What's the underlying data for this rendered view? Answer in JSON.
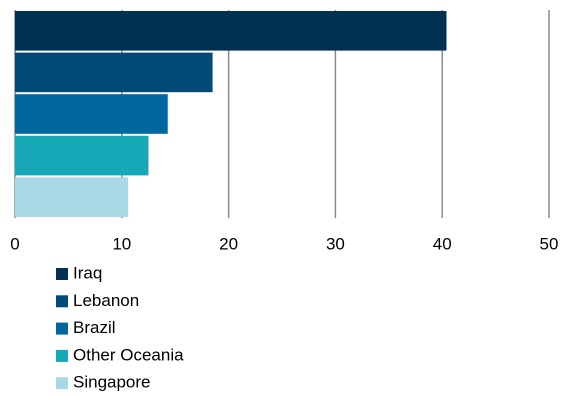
{
  "chart_data": {
    "type": "bar",
    "orientation": "horizontal",
    "categories": [
      "Iraq",
      "Lebanon",
      "Brazil",
      "Other Oceania",
      "Singapore"
    ],
    "series": [
      {
        "name": "Iraq",
        "color": "#003150",
        "values": [
          40.4,
          null,
          null,
          null,
          null
        ]
      },
      {
        "name": "Lebanon",
        "color": "#004a75",
        "values": [
          null,
          18.5,
          null,
          null,
          null
        ]
      },
      {
        "name": "Brazil",
        "color": "#00689e",
        "values": [
          null,
          null,
          14.3,
          null,
          null
        ]
      },
      {
        "name": "Other Oceania",
        "color": "#17a8b8",
        "values": [
          null,
          null,
          null,
          12.5,
          null
        ]
      },
      {
        "name": "Singapore",
        "color": "#a8d8e4",
        "values": [
          null,
          null,
          null,
          null,
          10.6
        ]
      }
    ],
    "xlim": [
      0,
      50
    ],
    "xticks": [
      0,
      10,
      20,
      30,
      40,
      50
    ],
    "grid": true,
    "legend": "bottom"
  }
}
